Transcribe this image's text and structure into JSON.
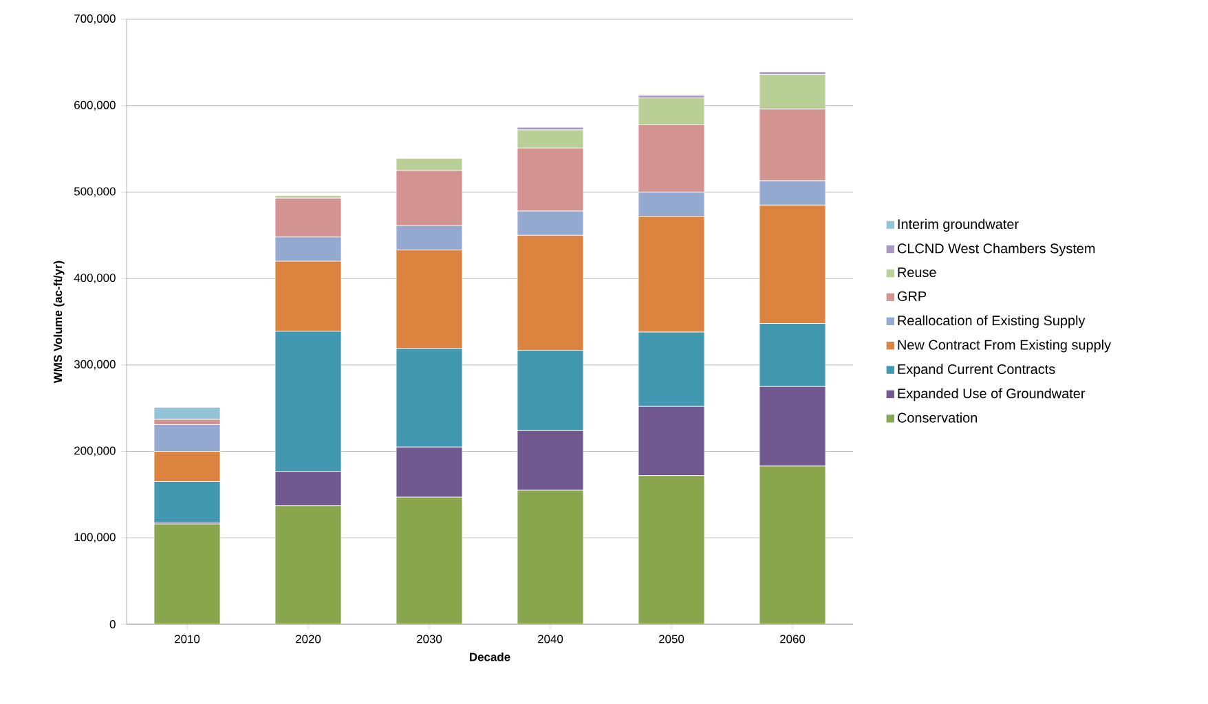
{
  "chart_data": {
    "type": "bar",
    "stacked": true,
    "xlabel": "Decade",
    "ylabel": "WMS Volume (ac-ft/yr)",
    "categories": [
      "2010",
      "2020",
      "2030",
      "2040",
      "2050",
      "2060"
    ],
    "series": [
      {
        "name": "Conservation",
        "color": "#8aa64d",
        "values": [
          116000,
          137000,
          147000,
          155000,
          172000,
          183000
        ]
      },
      {
        "name": "Expanded Use of Groundwater",
        "color": "#71588f",
        "values": [
          2000,
          40000,
          58000,
          69000,
          80000,
          92000
        ]
      },
      {
        "name": "Expand Current Contracts",
        "color": "#4298b0",
        "values": [
          47000,
          162000,
          114000,
          93000,
          86000,
          73000
        ]
      },
      {
        "name": "New Contract From Existing supply",
        "color": "#dc843f",
        "values": [
          35000,
          81000,
          114000,
          133000,
          134000,
          137000
        ]
      },
      {
        "name": "Reallocation of Existing Supply",
        "color": "#94a9d0",
        "values": [
          31000,
          28000,
          28000,
          28000,
          28000,
          28000
        ]
      },
      {
        "name": "GRP",
        "color": "#d39391",
        "values": [
          6000,
          45000,
          64000,
          73000,
          78000,
          83000
        ]
      },
      {
        "name": "Reuse",
        "color": "#bacf96",
        "values": [
          0,
          3000,
          14000,
          21000,
          31000,
          40000
        ]
      },
      {
        "name": "CLCND West Chambers System",
        "color": "#a898c3",
        "values": [
          0,
          0,
          null,
          3000,
          3000,
          3000
        ]
      },
      {
        "name": "Interim groundwater",
        "color": "#93c4d5",
        "values": [
          14000,
          0,
          0,
          0,
          0,
          0
        ]
      }
    ],
    "ylim": [
      0,
      700000
    ],
    "yticks": [
      {
        "value": 0,
        "label": "0"
      },
      {
        "value": 100000,
        "label": "100,000"
      },
      {
        "value": 200000,
        "label": "200,000"
      },
      {
        "value": 300000,
        "label": "300,000"
      },
      {
        "value": 400000,
        "label": "400,000"
      },
      {
        "value": 500000,
        "label": "500,000"
      },
      {
        "value": 600000,
        "label": "600,000"
      },
      {
        "value": 700000,
        "label": "700,000"
      }
    ],
    "grid": "y",
    "legend": "right"
  }
}
